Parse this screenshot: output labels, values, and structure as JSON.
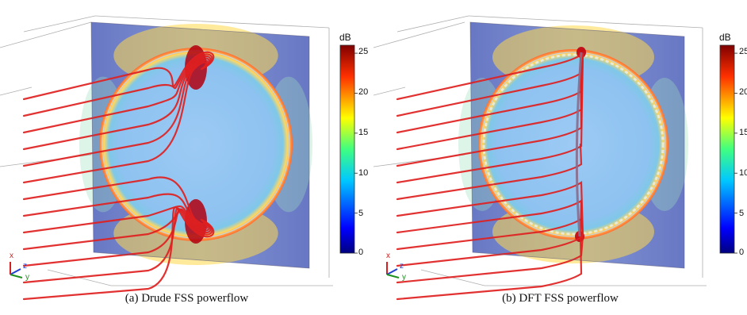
{
  "colors": {
    "streamline": "#e02020",
    "slab": "#6f7fc8",
    "disk": "#9cc8f2",
    "x_axis": "#d42020",
    "y_axis": "#209020",
    "z_axis": "#2040d0"
  },
  "colorbar": {
    "unit": "dB",
    "min": 0,
    "max": 26,
    "ticks": [
      "0",
      "5",
      "10",
      "15",
      "20",
      "25"
    ],
    "tick_values": [
      0,
      5,
      10,
      15,
      20,
      25
    ]
  },
  "axes_triad": {
    "x": "x",
    "y": "y",
    "z": "z"
  },
  "panels": [
    {
      "id": "drude",
      "caption": "(a) Drude FSS powerflow",
      "pattern": "drude"
    },
    {
      "id": "dft",
      "caption": "(b) DFT FSS powerflow",
      "pattern": "dft"
    }
  ]
}
